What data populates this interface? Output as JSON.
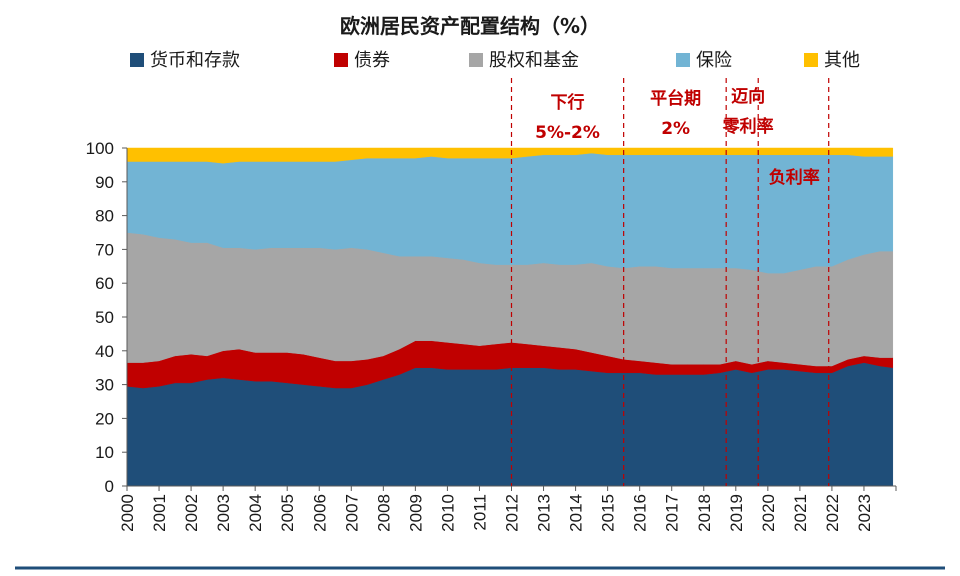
{
  "chart_data": {
    "type": "area",
    "stacked": true,
    "title": "欧洲居民资产配置结构（%）",
    "ylim": [
      0,
      100
    ],
    "yticks": [
      0,
      10,
      20,
      30,
      40,
      50,
      60,
      70,
      80,
      90,
      100
    ],
    "xlim": [
      2000,
      2024
    ],
    "xticks": [
      "2000",
      "2001",
      "2002",
      "2003",
      "2004",
      "2005",
      "2006",
      "2007",
      "2008",
      "2009",
      "2010",
      "2011",
      "2012",
      "2013",
      "2014",
      "2015",
      "2016",
      "2017",
      "2018",
      "2019",
      "2020",
      "2021",
      "2022",
      "2023"
    ],
    "legend_position": "top",
    "x": [
      2000,
      2000.5,
      2001,
      2001.5,
      2002,
      2002.5,
      2003,
      2003.5,
      2004,
      2004.5,
      2005,
      2005.5,
      2006,
      2006.5,
      2007,
      2007.5,
      2008,
      2008.5,
      2009,
      2009.5,
      2010,
      2010.5,
      2011,
      2011.5,
      2012,
      2012.5,
      2013,
      2013.5,
      2014,
      2014.5,
      2015,
      2015.5,
      2016,
      2016.5,
      2017,
      2017.5,
      2018,
      2018.5,
      2019,
      2019.5,
      2020,
      2020.5,
      2021,
      2021.5,
      2022,
      2022.5,
      2023,
      2023.5,
      2023.9
    ],
    "series": [
      {
        "name": "货币和存款",
        "color": "#1f4e79",
        "values": [
          29.5,
          29.0,
          29.5,
          30.5,
          30.5,
          31.5,
          32.0,
          31.5,
          31.0,
          31.0,
          30.5,
          30.0,
          29.5,
          29.0,
          29.0,
          30.0,
          31.5,
          33.0,
          35.0,
          35.0,
          34.5,
          34.5,
          34.5,
          34.5,
          35.0,
          35.0,
          35.0,
          34.5,
          34.5,
          34.0,
          33.5,
          33.5,
          33.5,
          33.0,
          33.0,
          33.0,
          33.0,
          33.5,
          34.5,
          33.5,
          34.5,
          34.5,
          34.0,
          33.5,
          33.5,
          35.5,
          36.5,
          35.5,
          35.0
        ]
      },
      {
        "name": "债券",
        "color": "#c00000",
        "values": [
          7.0,
          7.5,
          7.5,
          8.0,
          8.5,
          7.0,
          8.0,
          9.0,
          8.5,
          8.5,
          9.0,
          9.0,
          8.5,
          8.0,
          8.0,
          7.5,
          7.0,
          7.5,
          8.0,
          8.0,
          8.0,
          7.5,
          7.0,
          7.5,
          7.5,
          7.0,
          6.5,
          6.5,
          6.0,
          5.5,
          5.0,
          4.0,
          3.5,
          3.5,
          3.0,
          3.0,
          3.0,
          2.5,
          2.5,
          2.5,
          2.5,
          2.0,
          2.0,
          2.0,
          2.0,
          2.0,
          2.0,
          2.5,
          3.0
        ]
      },
      {
        "name": "股权和基金",
        "color": "#a6a6a6",
        "values": [
          38.5,
          38.0,
          36.5,
          34.5,
          33.0,
          33.5,
          30.5,
          30.0,
          30.5,
          31.0,
          31.0,
          31.5,
          32.5,
          33.0,
          33.5,
          32.5,
          30.5,
          27.5,
          25.0,
          25.0,
          25.0,
          25.0,
          24.5,
          23.5,
          23.0,
          23.5,
          24.5,
          24.5,
          25.0,
          26.5,
          26.5,
          27.0,
          28.0,
          28.5,
          28.5,
          28.5,
          28.5,
          28.5,
          27.5,
          28.0,
          26.0,
          26.5,
          28.0,
          29.5,
          29.5,
          29.5,
          30.0,
          31.5,
          31.5
        ]
      },
      {
        "name": "保险",
        "color": "#72b4d4",
        "values": [
          21.0,
          21.5,
          22.5,
          23.0,
          24.0,
          24.0,
          25.0,
          25.5,
          26.0,
          25.5,
          25.5,
          25.5,
          25.5,
          26.0,
          26.0,
          27.0,
          28.0,
          29.0,
          29.0,
          29.5,
          29.5,
          30.0,
          31.0,
          31.5,
          31.5,
          32.0,
          32.0,
          32.5,
          32.5,
          32.5,
          33.0,
          33.5,
          33.0,
          33.0,
          33.5,
          33.5,
          33.5,
          33.5,
          33.5,
          34.0,
          35.0,
          35.0,
          34.0,
          33.0,
          33.0,
          31.0,
          29.0,
          28.0,
          28.0
        ]
      },
      {
        "name": "其他",
        "color": "#ffc000",
        "values": [
          4.0,
          4.0,
          4.0,
          4.0,
          4.0,
          4.0,
          4.5,
          4.0,
          4.0,
          4.0,
          4.0,
          4.0,
          4.0,
          4.0,
          3.5,
          3.0,
          3.0,
          3.0,
          3.0,
          2.5,
          3.0,
          3.0,
          3.0,
          3.0,
          3.0,
          2.5,
          2.0,
          2.0,
          2.0,
          1.5,
          2.0,
          2.0,
          2.0,
          2.0,
          2.0,
          2.0,
          2.0,
          2.0,
          2.0,
          2.0,
          2.0,
          2.0,
          2.0,
          2.0,
          2.0,
          2.0,
          2.5,
          2.5,
          2.5
        ]
      }
    ],
    "markers": [
      {
        "x": 2012.0,
        "lines": [
          "下行",
          "5%-2%"
        ]
      },
      {
        "x": 2015.5,
        "lines": [
          "平台期",
          "2%"
        ]
      },
      {
        "x": 2018.7,
        "lines": [
          "迈向",
          "零利率"
        ]
      },
      {
        "x": 2019.7,
        "lines": [
          "负利率"
        ]
      },
      {
        "x": 2021.9,
        "lines": []
      }
    ]
  }
}
